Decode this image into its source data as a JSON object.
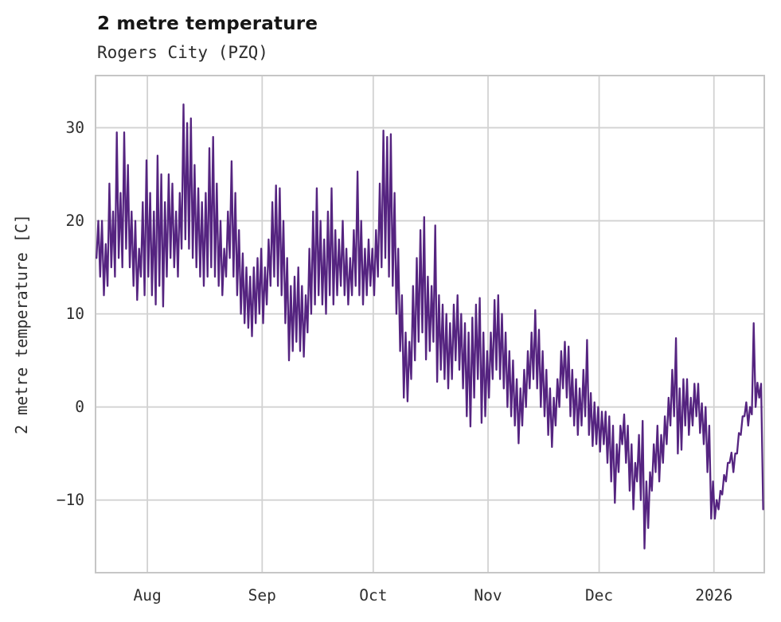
{
  "title": "2 metre temperature",
  "subtitle": "Rogers City (PZQ)",
  "chart_data": {
    "type": "line",
    "title": "2 metre temperature",
    "subtitle": "Rogers City (PZQ)",
    "xlabel": "",
    "ylabel": "2 metre temperature [C]",
    "legend": "none",
    "grid": true,
    "line_color": "#552480",
    "grid_color": "#d2d2d2",
    "spine_color": "#c6c6c6",
    "start_date": "2025-07-18",
    "points_per_day": 2,
    "x_tick_labels": [
      "Aug",
      "Sep",
      "Oct",
      "Nov",
      "Dec",
      "2026"
    ],
    "x_tick_days": [
      14,
      45,
      75,
      106,
      136,
      167
    ],
    "y_ticks": [
      30,
      20,
      10,
      0,
      -10
    ],
    "ylim": [
      -17.8,
      35.6
    ],
    "xlim_days": [
      0,
      180.6
    ],
    "daily_minmax": [
      [
        16,
        20
      ],
      [
        14,
        20
      ],
      [
        12,
        17.5
      ],
      [
        13,
        24
      ],
      [
        15,
        21
      ],
      [
        14,
        29.5
      ],
      [
        16,
        23
      ],
      [
        15,
        29.5
      ],
      [
        17,
        26
      ],
      [
        15,
        21
      ],
      [
        13,
        20
      ],
      [
        11.5,
        17
      ],
      [
        14,
        22
      ],
      [
        12,
        26.5
      ],
      [
        14,
        23
      ],
      [
        12,
        21
      ],
      [
        11,
        27
      ],
      [
        13,
        25
      ],
      [
        10.8,
        22
      ],
      [
        14,
        25
      ],
      [
        16,
        24
      ],
      [
        15,
        21
      ],
      [
        14,
        23
      ],
      [
        17,
        32.5
      ],
      [
        18,
        30.5
      ],
      [
        17,
        31
      ],
      [
        16,
        26
      ],
      [
        15,
        23.5
      ],
      [
        14,
        22
      ],
      [
        13,
        23
      ],
      [
        14,
        27.8
      ],
      [
        15,
        29
      ],
      [
        14,
        24
      ],
      [
        13,
        20
      ],
      [
        12,
        17
      ],
      [
        14,
        21
      ],
      [
        16,
        26.4
      ],
      [
        14,
        23
      ],
      [
        12,
        19
      ],
      [
        10,
        16.5
      ],
      [
        9,
        15
      ],
      [
        8.5,
        14
      ],
      [
        7.6,
        15
      ],
      [
        9,
        16
      ],
      [
        10,
        17
      ],
      [
        9,
        15
      ],
      [
        11,
        18
      ],
      [
        13,
        22
      ],
      [
        14,
        23.8
      ],
      [
        13,
        23.5
      ],
      [
        12,
        20
      ],
      [
        9,
        16
      ],
      [
        5,
        13
      ],
      [
        6,
        14
      ],
      [
        7,
        15
      ],
      [
        6,
        13
      ],
      [
        5.4,
        12
      ],
      [
        8,
        17
      ],
      [
        10,
        21
      ],
      [
        11,
        23.5
      ],
      [
        12,
        20
      ],
      [
        11,
        18
      ],
      [
        10,
        21
      ],
      [
        12,
        23.5
      ],
      [
        11,
        19
      ],
      [
        12,
        18
      ],
      [
        13,
        20
      ],
      [
        12,
        17
      ],
      [
        11,
        16
      ],
      [
        12,
        19
      ],
      [
        13,
        25.3
      ],
      [
        12,
        20
      ],
      [
        11,
        17
      ],
      [
        12,
        18
      ],
      [
        13,
        17
      ],
      [
        12,
        19
      ],
      [
        14,
        24
      ],
      [
        15,
        29.7
      ],
      [
        16,
        29
      ],
      [
        14,
        29.3
      ],
      [
        13,
        23
      ],
      [
        10,
        17
      ],
      [
        6,
        12
      ],
      [
        1,
        8
      ],
      [
        0.6,
        7
      ],
      [
        3,
        13
      ],
      [
        5,
        16
      ],
      [
        7,
        19
      ],
      [
        8,
        20.4
      ],
      [
        5.1,
        14
      ],
      [
        6,
        13
      ],
      [
        7,
        19.5
      ],
      [
        2.7,
        12
      ],
      [
        4,
        11
      ],
      [
        3,
        10
      ],
      [
        2,
        9
      ],
      [
        3,
        11
      ],
      [
        5,
        12
      ],
      [
        4,
        10
      ],
      [
        2,
        9
      ],
      [
        -1,
        8
      ],
      [
        -2.1,
        9.6
      ],
      [
        1,
        11
      ],
      [
        3,
        11.7
      ],
      [
        -1.7,
        8
      ],
      [
        -1,
        6
      ],
      [
        1,
        8
      ],
      [
        3,
        11.5
      ],
      [
        4,
        12
      ],
      [
        3,
        10
      ],
      [
        2,
        8
      ],
      [
        0,
        6
      ],
      [
        -1,
        5
      ],
      [
        -2,
        3
      ],
      [
        -3.9,
        2
      ],
      [
        -2,
        4
      ],
      [
        0,
        6
      ],
      [
        2,
        8
      ],
      [
        3,
        10.4
      ],
      [
        2,
        8.3
      ],
      [
        0,
        6
      ],
      [
        -1,
        4
      ],
      [
        -3,
        2
      ],
      [
        -4.3,
        1
      ],
      [
        -2,
        3
      ],
      [
        0,
        6
      ],
      [
        2,
        7
      ],
      [
        1,
        6.5
      ],
      [
        -1,
        4
      ],
      [
        -2,
        3
      ],
      [
        -3,
        2
      ],
      [
        -2,
        4
      ],
      [
        -1,
        7.2
      ],
      [
        -3,
        1.5
      ],
      [
        -4.2,
        0.5
      ],
      [
        -4,
        0
      ],
      [
        -4.8,
        -0.5
      ],
      [
        -4,
        -0.5
      ],
      [
        -6,
        -1
      ],
      [
        -8,
        -2
      ],
      [
        -10.3,
        -4
      ],
      [
        -7,
        -2
      ],
      [
        -4,
        -0.8
      ],
      [
        -6,
        -2
      ],
      [
        -9,
        -4
      ],
      [
        -11,
        -6
      ],
      [
        -8,
        -3
      ],
      [
        -10,
        -1.5
      ],
      [
        -15.2,
        -8
      ],
      [
        -13,
        -7
      ],
      [
        -9,
        -4
      ],
      [
        -7,
        -2
      ],
      [
        -8,
        -3
      ],
      [
        -6,
        -1
      ],
      [
        -4,
        1
      ],
      [
        -2,
        4
      ],
      [
        -1,
        7.4
      ],
      [
        -5,
        2
      ],
      [
        -4.6,
        3
      ],
      [
        -2,
        3
      ],
      [
        -3,
        1
      ],
      [
        -2,
        2.5
      ],
      [
        -1,
        2.5
      ],
      [
        -2.8,
        0.4
      ],
      [
        -4,
        0
      ],
      [
        -7,
        -2
      ],
      [
        -12,
        -8
      ],
      [
        -12,
        -10
      ],
      [
        -11,
        -9
      ],
      [
        -9.4,
        -7.3
      ],
      [
        -8,
        -6
      ],
      [
        -6,
        -4.9
      ],
      [
        -7,
        -5
      ],
      [
        -5,
        -2.8
      ],
      [
        -3,
        -1
      ],
      [
        -1,
        0.5
      ],
      [
        -2,
        0
      ],
      [
        -0.8,
        9
      ],
      [
        0,
        2.6
      ],
      [
        1,
        2.5
      ]
    ],
    "tail_point": {
      "day": 180.3,
      "value": -11
    }
  }
}
